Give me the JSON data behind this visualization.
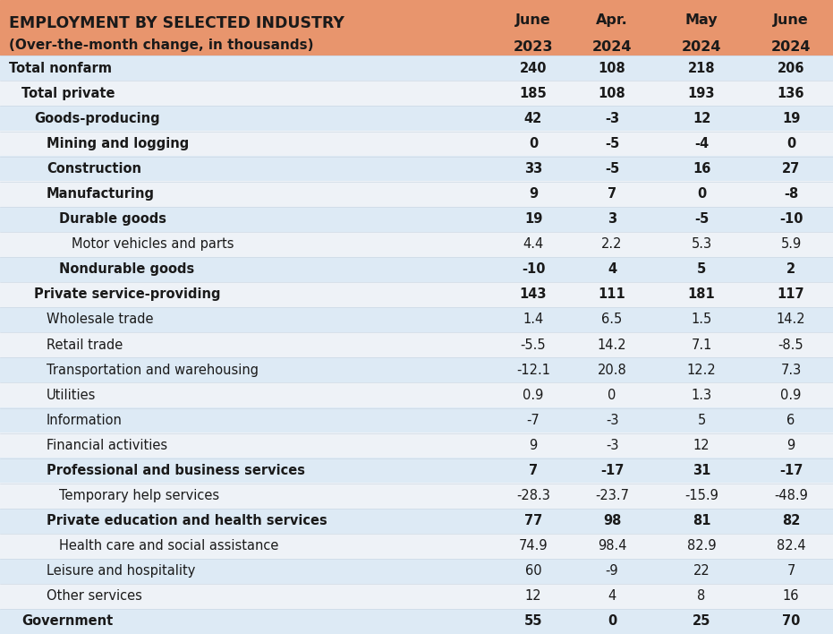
{
  "header_bg": "#E8956D",
  "title_line1": "EMPLOYMENT BY SELECTED INDUSTRY",
  "title_line2": "(Over-the-month change, in thousands)",
  "col_headers_line1": [
    "June",
    "Apr.",
    "May",
    "June"
  ],
  "col_headers_line2": [
    "2023",
    "2024",
    "2024",
    "2024"
  ],
  "rows": [
    {
      "label": "Total nonfarm",
      "indent": 0,
      "values": [
        "240",
        "108",
        "218",
        "206"
      ],
      "bold": true,
      "bg": "light"
    },
    {
      "label": "Total private",
      "indent": 1,
      "values": [
        "185",
        "108",
        "193",
        "136"
      ],
      "bold": true,
      "bg": "white"
    },
    {
      "label": "Goods-producing",
      "indent": 2,
      "values": [
        "42",
        "-3",
        "12",
        "19"
      ],
      "bold": true,
      "bg": "light"
    },
    {
      "label": "Mining and logging",
      "indent": 3,
      "values": [
        "0",
        "-5",
        "-4",
        "0"
      ],
      "bold": true,
      "bg": "white"
    },
    {
      "label": "Construction",
      "indent": 3,
      "values": [
        "33",
        "-5",
        "16",
        "27"
      ],
      "bold": true,
      "bg": "light"
    },
    {
      "label": "Manufacturing",
      "indent": 3,
      "values": [
        "9",
        "7",
        "0",
        "-8"
      ],
      "bold": true,
      "bg": "white"
    },
    {
      "label": "Durable goods",
      "indent": 4,
      "values": [
        "19",
        "3",
        "-5",
        "-10"
      ],
      "bold": true,
      "bg": "light"
    },
    {
      "label": "Motor vehicles and parts",
      "indent": 5,
      "values": [
        "4.4",
        "2.2",
        "5.3",
        "5.9"
      ],
      "bold": false,
      "bg": "white"
    },
    {
      "label": "Nondurable goods",
      "indent": 4,
      "values": [
        "-10",
        "4",
        "5",
        "2"
      ],
      "bold": true,
      "bg": "light"
    },
    {
      "label": "Private service-providing",
      "indent": 2,
      "values": [
        "143",
        "111",
        "181",
        "117"
      ],
      "bold": true,
      "bg": "white"
    },
    {
      "label": "Wholesale trade",
      "indent": 3,
      "values": [
        "1.4",
        "6.5",
        "1.5",
        "14.2"
      ],
      "bold": false,
      "bg": "light"
    },
    {
      "label": "Retail trade",
      "indent": 3,
      "values": [
        "-5.5",
        "14.2",
        "7.1",
        "-8.5"
      ],
      "bold": false,
      "bg": "white"
    },
    {
      "label": "Transportation and warehousing",
      "indent": 3,
      "values": [
        "-12.1",
        "20.8",
        "12.2",
        "7.3"
      ],
      "bold": false,
      "bg": "light"
    },
    {
      "label": "Utilities",
      "indent": 3,
      "values": [
        "0.9",
        "0",
        "1.3",
        "0.9"
      ],
      "bold": false,
      "bg": "white"
    },
    {
      "label": "Information",
      "indent": 3,
      "values": [
        "-7",
        "-3",
        "5",
        "6"
      ],
      "bold": false,
      "bg": "light"
    },
    {
      "label": "Financial activities",
      "indent": 3,
      "values": [
        "9",
        "-3",
        "12",
        "9"
      ],
      "bold": false,
      "bg": "white"
    },
    {
      "label": "Professional and business services",
      "indent": 3,
      "values": [
        "7",
        "-17",
        "31",
        "-17"
      ],
      "bold": true,
      "bg": "light"
    },
    {
      "label": "Temporary help services",
      "indent": 4,
      "values": [
        "-28.3",
        "-23.7",
        "-15.9",
        "-48.9"
      ],
      "bold": false,
      "bg": "white"
    },
    {
      "label": "Private education and health services",
      "indent": 3,
      "values": [
        "77",
        "98",
        "81",
        "82"
      ],
      "bold": true,
      "bg": "light"
    },
    {
      "label": "Health care and social assistance",
      "indent": 4,
      "values": [
        "74.9",
        "98.4",
        "82.9",
        "82.4"
      ],
      "bold": false,
      "bg": "white"
    },
    {
      "label": "Leisure and hospitality",
      "indent": 3,
      "values": [
        "60",
        "-9",
        "22",
        "7"
      ],
      "bold": false,
      "bg": "light"
    },
    {
      "label": "Other services",
      "indent": 3,
      "values": [
        "12",
        "4",
        "8",
        "16"
      ],
      "bold": false,
      "bg": "white"
    },
    {
      "label": "Government",
      "indent": 1,
      "values": [
        "55",
        "0",
        "25",
        "70"
      ],
      "bold": true,
      "bg": "light"
    }
  ],
  "light_bg": "#DDEAF5",
  "white_bg": "#EEF2F7",
  "fig_bg": "#ffffff",
  "header_fontsize": 11.5,
  "data_fontsize": 10.5,
  "title_fontsize1": 12.5,
  "title_fontsize2": 11.0
}
